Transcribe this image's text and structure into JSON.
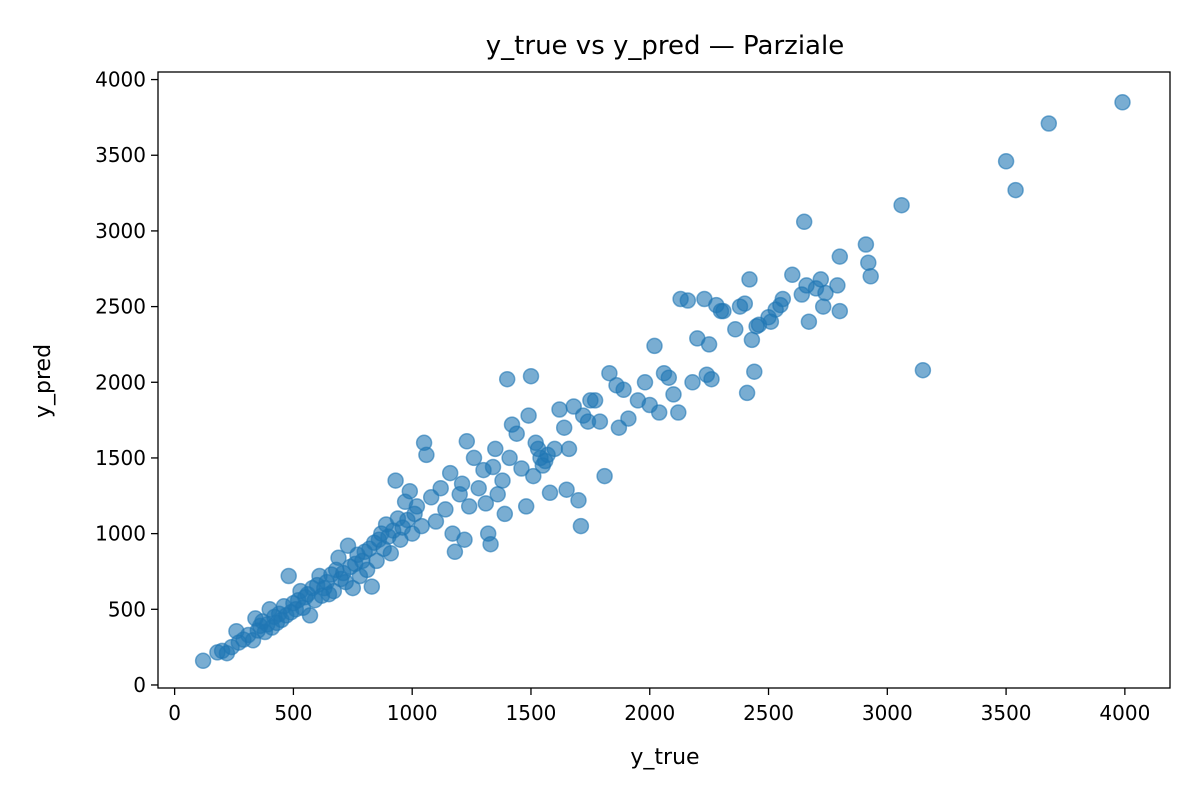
{
  "chart_data": {
    "type": "scatter",
    "title": "y_true vs y_pred — Parziale",
    "xlabel": "y_true",
    "ylabel": "y_pred",
    "xlim": [
      -70,
      4190
    ],
    "ylim": [
      -20,
      4050
    ],
    "xticks": [
      0,
      500,
      1000,
      1500,
      2000,
      2500,
      3000,
      3500,
      4000
    ],
    "yticks": [
      0,
      500,
      1000,
      1500,
      2000,
      2500,
      3000,
      3500,
      4000
    ],
    "grid": false,
    "legend": "none",
    "colors": {
      "point": "#1f77b4",
      "axis": "#000000"
    },
    "series": [
      {
        "points": [
          [
            120,
            160
          ],
          [
            180,
            215
          ],
          [
            200,
            225
          ],
          [
            220,
            210
          ],
          [
            240,
            250
          ],
          [
            260,
            355
          ],
          [
            270,
            280
          ],
          [
            290,
            300
          ],
          [
            310,
            330
          ],
          [
            330,
            295
          ],
          [
            340,
            440
          ],
          [
            350,
            360
          ],
          [
            360,
            390
          ],
          [
            370,
            420
          ],
          [
            380,
            350
          ],
          [
            390,
            400
          ],
          [
            400,
            500
          ],
          [
            410,
            380
          ],
          [
            420,
            450
          ],
          [
            430,
            410
          ],
          [
            440,
            470
          ],
          [
            450,
            430
          ],
          [
            460,
            520
          ],
          [
            470,
            460
          ],
          [
            480,
            720
          ],
          [
            490,
            480
          ],
          [
            500,
            540
          ],
          [
            510,
            500
          ],
          [
            520,
            560
          ],
          [
            530,
            620
          ],
          [
            540,
            510
          ],
          [
            550,
            580
          ],
          [
            560,
            600
          ],
          [
            570,
            460
          ],
          [
            580,
            640
          ],
          [
            590,
            560
          ],
          [
            600,
            660
          ],
          [
            610,
            720
          ],
          [
            620,
            590
          ],
          [
            630,
            640
          ],
          [
            640,
            680
          ],
          [
            650,
            600
          ],
          [
            660,
            730
          ],
          [
            670,
            620
          ],
          [
            680,
            760
          ],
          [
            690,
            840
          ],
          [
            700,
            700
          ],
          [
            710,
            740
          ],
          [
            720,
            680
          ],
          [
            730,
            920
          ],
          [
            740,
            780
          ],
          [
            750,
            640
          ],
          [
            760,
            800
          ],
          [
            770,
            860
          ],
          [
            780,
            720
          ],
          [
            790,
            820
          ],
          [
            800,
            880
          ],
          [
            810,
            760
          ],
          [
            820,
            900
          ],
          [
            830,
            650
          ],
          [
            840,
            940
          ],
          [
            850,
            820
          ],
          [
            860,
            960
          ],
          [
            870,
            1000
          ],
          [
            880,
            900
          ],
          [
            890,
            1060
          ],
          [
            900,
            980
          ],
          [
            910,
            870
          ],
          [
            920,
            1020
          ],
          [
            930,
            1350
          ],
          [
            940,
            1100
          ],
          [
            950,
            960
          ],
          [
            960,
            1040
          ],
          [
            970,
            1210
          ],
          [
            980,
            1090
          ],
          [
            990,
            1280
          ],
          [
            1000,
            1000
          ],
          [
            1010,
            1130
          ],
          [
            1020,
            1180
          ],
          [
            1040,
            1050
          ],
          [
            1050,
            1600
          ],
          [
            1060,
            1520
          ],
          [
            1080,
            1240
          ],
          [
            1100,
            1080
          ],
          [
            1120,
            1300
          ],
          [
            1140,
            1160
          ],
          [
            1160,
            1400
          ],
          [
            1170,
            1000
          ],
          [
            1180,
            880
          ],
          [
            1200,
            1260
          ],
          [
            1210,
            1330
          ],
          [
            1220,
            960
          ],
          [
            1230,
            1610
          ],
          [
            1240,
            1180
          ],
          [
            1260,
            1500
          ],
          [
            1280,
            1300
          ],
          [
            1300,
            1420
          ],
          [
            1310,
            1200
          ],
          [
            1320,
            1000
          ],
          [
            1330,
            930
          ],
          [
            1340,
            1440
          ],
          [
            1350,
            1560
          ],
          [
            1360,
            1260
          ],
          [
            1380,
            1350
          ],
          [
            1390,
            1130
          ],
          [
            1400,
            2020
          ],
          [
            1410,
            1500
          ],
          [
            1420,
            1720
          ],
          [
            1440,
            1660
          ],
          [
            1460,
            1430
          ],
          [
            1480,
            1180
          ],
          [
            1490,
            1780
          ],
          [
            1500,
            2040
          ],
          [
            1510,
            1380
          ],
          [
            1520,
            1600
          ],
          [
            1530,
            1560
          ],
          [
            1540,
            1500
          ],
          [
            1550,
            1450
          ],
          [
            1560,
            1480
          ],
          [
            1570,
            1520
          ],
          [
            1580,
            1270
          ],
          [
            1600,
            1560
          ],
          [
            1620,
            1820
          ],
          [
            1640,
            1700
          ],
          [
            1650,
            1290
          ],
          [
            1660,
            1560
          ],
          [
            1680,
            1840
          ],
          [
            1700,
            1220
          ],
          [
            1710,
            1050
          ],
          [
            1720,
            1780
          ],
          [
            1740,
            1740
          ],
          [
            1750,
            1880
          ],
          [
            1770,
            1880
          ],
          [
            1790,
            1740
          ],
          [
            1810,
            1380
          ],
          [
            1830,
            2060
          ],
          [
            1860,
            1980
          ],
          [
            1870,
            1700
          ],
          [
            1890,
            1950
          ],
          [
            1910,
            1760
          ],
          [
            1950,
            1880
          ],
          [
            1980,
            2000
          ],
          [
            2000,
            1850
          ],
          [
            2020,
            2240
          ],
          [
            2040,
            1800
          ],
          [
            2060,
            2060
          ],
          [
            2080,
            2030
          ],
          [
            2100,
            1920
          ],
          [
            2120,
            1800
          ],
          [
            2130,
            2550
          ],
          [
            2160,
            2540
          ],
          [
            2180,
            2000
          ],
          [
            2200,
            2290
          ],
          [
            2230,
            2550
          ],
          [
            2240,
            2050
          ],
          [
            2250,
            2250
          ],
          [
            2260,
            2020
          ],
          [
            2280,
            2510
          ],
          [
            2300,
            2470
          ],
          [
            2310,
            2470
          ],
          [
            2360,
            2350
          ],
          [
            2380,
            2500
          ],
          [
            2400,
            2520
          ],
          [
            2410,
            1930
          ],
          [
            2420,
            2680
          ],
          [
            2430,
            2280
          ],
          [
            2440,
            2070
          ],
          [
            2450,
            2370
          ],
          [
            2460,
            2380
          ],
          [
            2500,
            2430
          ],
          [
            2510,
            2400
          ],
          [
            2530,
            2480
          ],
          [
            2550,
            2510
          ],
          [
            2560,
            2550
          ],
          [
            2600,
            2710
          ],
          [
            2640,
            2580
          ],
          [
            2650,
            3060
          ],
          [
            2660,
            2640
          ],
          [
            2670,
            2400
          ],
          [
            2700,
            2620
          ],
          [
            2720,
            2680
          ],
          [
            2730,
            2500
          ],
          [
            2740,
            2590
          ],
          [
            2790,
            2640
          ],
          [
            2800,
            2470
          ],
          [
            2800,
            2830
          ],
          [
            2910,
            2910
          ],
          [
            2920,
            2790
          ],
          [
            2930,
            2700
          ],
          [
            3060,
            3170
          ],
          [
            3150,
            2080
          ],
          [
            3500,
            3460
          ],
          [
            3540,
            3270
          ],
          [
            3680,
            3710
          ],
          [
            3990,
            3850
          ]
        ]
      }
    ]
  }
}
